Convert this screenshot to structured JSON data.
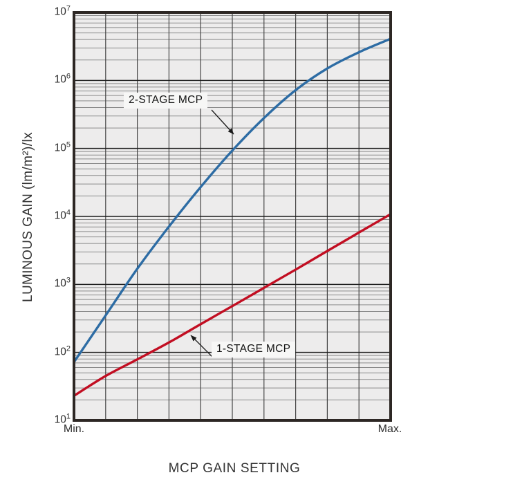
{
  "page": {
    "background": "#ffffff"
  },
  "chart_data": {
    "type": "line",
    "title": "",
    "xlabel": "MCP GAIN SETTING",
    "ylabel": "LUMINOUS GAIN (lm/m²)/lx",
    "x_axis": {
      "scale": "linear",
      "min_label": "Min.",
      "max_label": "Max.",
      "divisions": 10
    },
    "y_axis": {
      "scale": "log",
      "tick_base": "10",
      "tick_exponents": [
        7,
        6,
        5,
        4,
        3,
        2,
        1
      ],
      "ylim": [
        10,
        10000000
      ]
    },
    "grid": {
      "on": true,
      "background": "#edecec",
      "major_color": "#1c1c1c",
      "minor_color": "#8a8a8a",
      "vertical_color": "#454545",
      "frame_color": "#2d2724"
    },
    "legend_position": "annotated-on-plot",
    "series": [
      {
        "name": "2-STAGE MCP",
        "color": "#2d6ca4",
        "x": [
          0,
          0.1,
          0.2,
          0.3,
          0.4,
          0.5,
          0.6,
          0.7,
          0.8,
          0.9,
          1.0
        ],
        "values": [
          72,
          350,
          1700,
          7100,
          27000,
          93000,
          280000,
          720000,
          1500000,
          2600000,
          4100000
        ]
      },
      {
        "name": "1-STAGE MCP",
        "color": "#c20e22",
        "x": [
          0,
          0.1,
          0.2,
          0.3,
          0.4,
          0.5,
          0.6,
          0.7,
          0.8,
          0.9,
          1.0
        ],
        "values": [
          23,
          45,
          79,
          140,
          260,
          480,
          890,
          1650,
          3100,
          5800,
          10800
        ]
      }
    ],
    "annotations": [
      {
        "label": "2-STAGE MCP",
        "points_to_series": "2-STAGE MCP"
      },
      {
        "label": "1-STAGE MCP",
        "points_to_series": "1-STAGE MCP"
      }
    ]
  }
}
